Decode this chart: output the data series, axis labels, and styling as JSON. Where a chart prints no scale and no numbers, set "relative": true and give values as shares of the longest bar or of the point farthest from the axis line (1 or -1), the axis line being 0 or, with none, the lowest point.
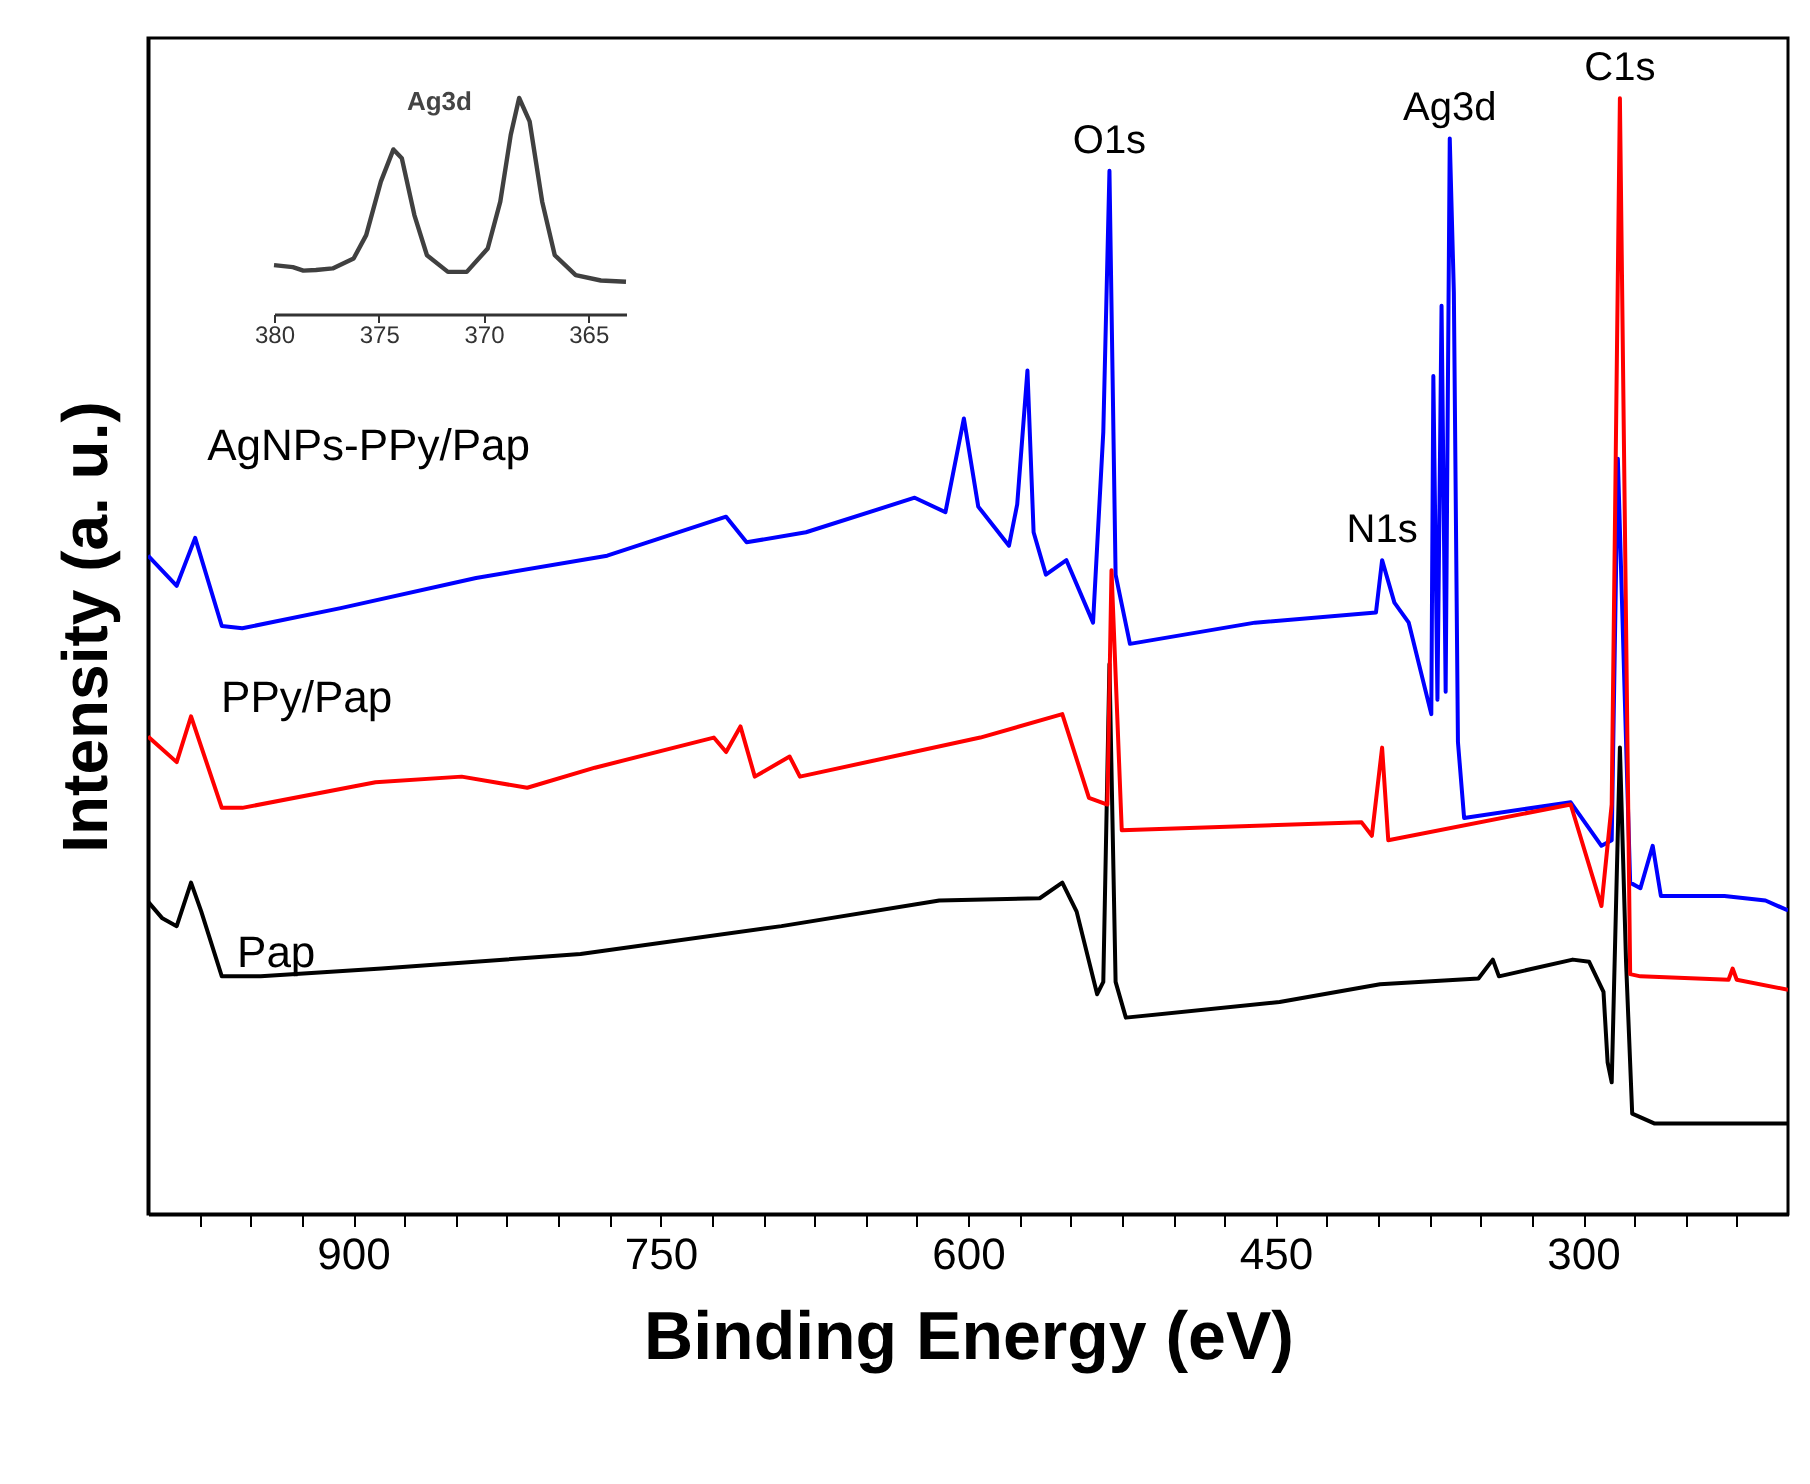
{
  "chart_data": [
    {
      "type": "line",
      "xlabel": "Binding Energy (eV)",
      "ylabel": "Intensity (a. u.)",
      "relative": true,
      "xlim": [
        1000,
        200
      ],
      "xticks": [
        {
          "value": 975,
          "label": null
        },
        {
          "value": 950,
          "label": null
        },
        {
          "value": 925,
          "label": null
        },
        900,
        {
          "value": 875,
          "label": null
        },
        {
          "value": 850,
          "label": null
        },
        {
          "value": 825,
          "label": null
        },
        {
          "value": 800,
          "label": null
        },
        {
          "value": 775,
          "label": null
        },
        750,
        {
          "value": 725,
          "label": null
        },
        {
          "value": 700,
          "label": null
        },
        {
          "value": 675,
          "label": null
        },
        {
          "value": 650,
          "label": null
        },
        {
          "value": 625,
          "label": null
        },
        600,
        {
          "value": 575,
          "label": null
        },
        {
          "value": 550,
          "label": null
        },
        {
          "value": 525,
          "label": null
        },
        {
          "value": 500,
          "label": null
        },
        {
          "value": 475,
          "label": null
        },
        450,
        {
          "value": 425,
          "label": null
        },
        {
          "value": 400,
          "label": null
        },
        {
          "value": 375,
          "label": null
        },
        {
          "value": 350,
          "label": null
        },
        {
          "value": 325,
          "label": null
        },
        300,
        {
          "value": 275,
          "label": null
        },
        {
          "value": 250,
          "label": null
        },
        {
          "value": 225,
          "label": null
        }
      ],
      "series": [
        {
          "name": "Pap",
          "color": "#000000",
          "x": [
            1000,
            993,
            986,
            979,
            974,
            964,
            945,
            886,
            789,
            691,
            614,
            565,
            554,
            547,
            537,
            534,
            531,
            528,
            523,
            448,
            399,
            351,
            344,
            341,
            305,
            297,
            290,
            288,
            286,
            282,
            279,
            276,
            265,
            200
          ],
          "values": [
            0.28,
            0.265,
            0.258,
            0.297,
            0.271,
            0.213,
            0.213,
            0.22,
            0.233,
            0.258,
            0.281,
            0.283,
            0.297,
            0.271,
            0.197,
            0.208,
            0.493,
            0.208,
            0.176,
            0.19,
            0.206,
            0.211,
            0.228,
            0.213,
            0.228,
            0.226,
            0.199,
            0.136,
            0.118,
            0.418,
            0.226,
            0.09,
            0.081,
            0.081
          ]
        },
        {
          "name": "AgNPs-PPy/Pap",
          "color": "#0000ff",
          "x": [
            1000,
            986,
            977,
            964,
            954,
            906,
            840,
            776,
            718,
            708,
            679,
            626,
            611,
            602,
            595,
            580,
            576,
            571,
            568,
            562,
            552,
            539,
            534,
            531,
            528,
            521,
            460,
            401,
            398,
            392,
            385,
            374,
            373,
            371,
            369,
            367,
            365,
            363,
            361,
            358,
            306,
            291,
            286,
            283,
            277,
            272,
            266,
            262,
            231,
            211,
            200
          ],
          "values": [
            0.59,
            0.563,
            0.606,
            0.527,
            0.525,
            0.543,
            0.57,
            0.59,
            0.625,
            0.602,
            0.611,
            0.642,
            0.629,
            0.713,
            0.634,
            0.599,
            0.636,
            0.756,
            0.611,
            0.573,
            0.586,
            0.53,
            0.701,
            0.935,
            0.573,
            0.511,
            0.53,
            0.539,
            0.586,
            0.548,
            0.53,
            0.448,
            0.751,
            0.461,
            0.814,
            0.468,
            0.964,
            0.826,
            0.423,
            0.355,
            0.369,
            0.33,
            0.335,
            0.677,
            0.297,
            0.292,
            0.33,
            0.285,
            0.285,
            0.281,
            0.272
          ]
        },
        {
          "name": "PPy/Pap",
          "color": "#ff0000",
          "x": [
            1000,
            986,
            979,
            964,
            954,
            889,
            847,
            815,
            782,
            724,
            718,
            711,
            704,
            687,
            682,
            594,
            554,
            541,
            532,
            530,
            525,
            408,
            403,
            398,
            395,
            306,
            291,
            286,
            282,
            277,
            272,
            229,
            227,
            225,
            200
          ],
          "values": [
            0.428,
            0.405,
            0.446,
            0.364,
            0.364,
            0.387,
            0.392,
            0.382,
            0.4,
            0.427,
            0.414,
            0.437,
            0.392,
            0.41,
            0.392,
            0.427,
            0.448,
            0.373,
            0.367,
            0.577,
            0.344,
            0.351,
            0.339,
            0.418,
            0.335,
            0.367,
            0.276,
            0.367,
            1.0,
            0.215,
            0.213,
            0.21,
            0.22,
            0.21,
            0.201
          ]
        }
      ],
      "annotations": [
        {
          "text": "O1s",
          "x": 531,
          "y": 0.935
        },
        {
          "text": "N1s",
          "x": 398,
          "y": 0.586
        },
        {
          "text": "Ag3d",
          "x": 365,
          "y": 0.964
        },
        {
          "text": "C1s",
          "x": 282,
          "y": 1.0
        }
      ]
    },
    {
      "type": "line",
      "relative": true,
      "xlim": [
        380,
        363.2
      ],
      "xticks": [
        380,
        375,
        370,
        365
      ],
      "series": [
        {
          "color": "#404040",
          "x": [
            380,
            379.1,
            378.6,
            378.0,
            377.2,
            376.2,
            375.6,
            374.9,
            374.3,
            373.9,
            373.3,
            372.7,
            371.7,
            370.8,
            369.8,
            369.2,
            368.7,
            368.3,
            367.8,
            367.2,
            366.6,
            365.6,
            364.4,
            363.2
          ],
          "values": [
            0.226,
            0.217,
            0.201,
            0.204,
            0.211,
            0.257,
            0.365,
            0.613,
            0.762,
            0.721,
            0.458,
            0.272,
            0.195,
            0.195,
            0.303,
            0.52,
            0.83,
            1.0,
            0.892,
            0.52,
            0.272,
            0.18,
            0.155,
            0.149
          ]
        }
      ],
      "annotations": [
        "Ag3d"
      ]
    }
  ]
}
